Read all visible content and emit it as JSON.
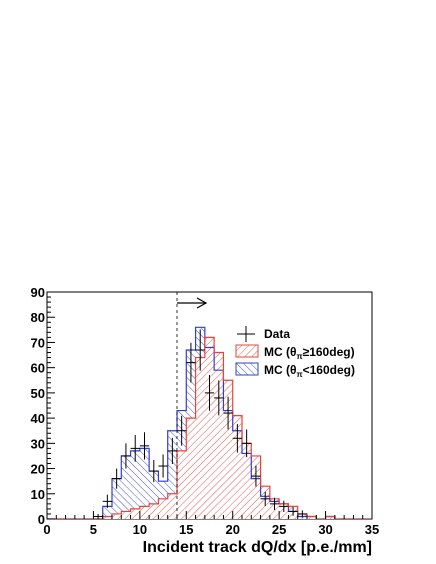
{
  "chart_data": {
    "type": "bar",
    "xlabel": "Incident track dQ/dx [p.e./mm]",
    "ylabel": "",
    "xlim": [
      0,
      35
    ],
    "ylim": [
      0,
      90
    ],
    "x_ticks": [
      0,
      5,
      10,
      15,
      20,
      25,
      30,
      35
    ],
    "y_ticks": [
      0,
      10,
      20,
      30,
      40,
      50,
      60,
      70,
      80,
      90
    ],
    "cut_line_x": 14,
    "arrow_direction": "right",
    "legend_position": "right",
    "bin_edges": [
      0,
      1,
      2,
      3,
      4,
      5,
      6,
      7,
      8,
      9,
      10,
      11,
      12,
      13,
      14,
      15,
      16,
      17,
      18,
      19,
      20,
      21,
      22,
      23,
      24,
      25,
      26,
      27,
      28,
      29,
      30,
      31,
      32,
      33,
      34,
      35
    ],
    "series": [
      {
        "name": "Data",
        "style": "points",
        "color": "#000000",
        "x": [
          5.5,
          6.5,
          7.5,
          8.5,
          9.5,
          10.5,
          11.5,
          12.5,
          13.5,
          14.5,
          15.5,
          16.5,
          17.5,
          18.5,
          19.5,
          20.5,
          21.5,
          22.5,
          23.5,
          24.5,
          25.5,
          26.5,
          27.5
        ],
        "values": [
          1,
          7,
          16,
          25,
          28,
          29,
          19,
          21,
          27,
          35,
          62,
          67,
          50,
          48,
          42,
          32,
          30,
          17,
          8,
          6,
          5,
          3,
          2
        ]
      },
      {
        "name": "MC (θπ≥160deg)",
        "name_main": "MC (",
        "name_theta": "θ",
        "name_sub": "π",
        "name_tail": "≥160deg)",
        "style": "hatched-red",
        "color": "#e8443a",
        "values": [
          0,
          0,
          0,
          0,
          0,
          0,
          1,
          2,
          3,
          4,
          5,
          6,
          8,
          10,
          27,
          40,
          64,
          72,
          66,
          55,
          41,
          30,
          25,
          13,
          8,
          6,
          5,
          2,
          1,
          0,
          1,
          0,
          0,
          0,
          0
        ]
      },
      {
        "name": "MC (θπ<160deg)",
        "name_main": "MC (",
        "name_theta": "θ",
        "name_sub": "π",
        "name_tail": "<160deg)",
        "style": "hatched-blue",
        "color": "#2f3fd0",
        "values": [
          0,
          0,
          0,
          0,
          0,
          0,
          5,
          16,
          25,
          27,
          28,
          19,
          15,
          35,
          43,
          67,
          76,
          68,
          59,
          43,
          35,
          26,
          16,
          9,
          7,
          6,
          3,
          1,
          1,
          0,
          1,
          0,
          0,
          0,
          0
        ]
      }
    ]
  }
}
